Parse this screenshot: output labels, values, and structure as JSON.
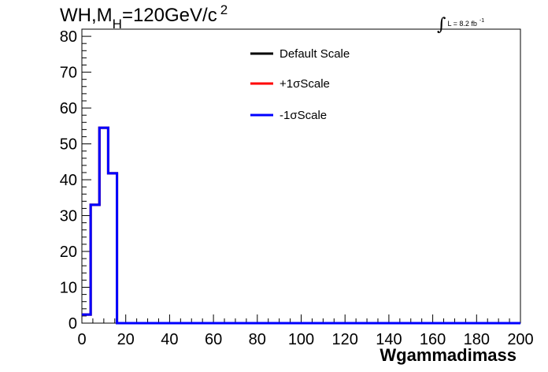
{
  "header": {
    "title_main": "WH,M",
    "title_sub": "H",
    "title_rest": "=120GeV/c",
    "title_sup": "2",
    "lumi_text": "L = 8.2 fb",
    "lumi_sup": "-1"
  },
  "colors": {
    "default": "#000000",
    "plus": "#ff0000",
    "minus": "#0000ff"
  },
  "chart_data": {
    "type": "line",
    "style": "step-histogram",
    "title": "WH,MH=120GeV/c2",
    "xlabel": "Wgammadimass",
    "ylabel": "",
    "xlim": [
      0,
      200
    ],
    "ylim": [
      0,
      82
    ],
    "xticks": [
      0,
      20,
      40,
      60,
      80,
      100,
      120,
      140,
      160,
      180,
      200
    ],
    "yticks": [
      0,
      10,
      20,
      30,
      40,
      50,
      60,
      70,
      80
    ],
    "grid": false,
    "legend_position": "top-center",
    "bin_edges": [
      0,
      4,
      8,
      12,
      16,
      20,
      24,
      28,
      32,
      36,
      40,
      44,
      48,
      52,
      56,
      60,
      64,
      68,
      72,
      76,
      80,
      84,
      88,
      92,
      96,
      100,
      104,
      108,
      112,
      116,
      120,
      124,
      128,
      132,
      136,
      140,
      144,
      148,
      152,
      156,
      160,
      164,
      168,
      172,
      176,
      180,
      184,
      188,
      192,
      196,
      200
    ],
    "series": [
      {
        "name": "Default Scale",
        "color": "#000000",
        "values": [
          2.4,
          33,
          54.5,
          41.8,
          0,
          0,
          0,
          0,
          0,
          0,
          0,
          0,
          0,
          0,
          0,
          0,
          0,
          0,
          0,
          0,
          0,
          0,
          0,
          0,
          0,
          0,
          0,
          0,
          0,
          0,
          0,
          0,
          0,
          0,
          0,
          0,
          0,
          0,
          0,
          0,
          0,
          0,
          0,
          0,
          0,
          0,
          0,
          0,
          0,
          0
        ]
      },
      {
        "name": "+1σScale",
        "color": "#ff0000",
        "values": [
          2.4,
          33,
          54.5,
          41.8,
          0,
          0,
          0,
          0,
          0,
          0,
          0,
          0,
          0,
          0,
          0,
          0,
          0,
          0,
          0,
          0,
          0,
          0,
          0,
          0,
          0,
          0,
          0,
          0,
          0,
          0,
          0,
          0,
          0,
          0,
          0,
          0,
          0,
          0,
          0,
          0,
          0,
          0,
          0,
          0,
          0,
          0,
          0,
          0,
          0,
          0
        ]
      },
      {
        "name": "-1σScale",
        "color": "#0000ff",
        "values": [
          2.4,
          33,
          54.5,
          41.8,
          0,
          0,
          0,
          0,
          0,
          0,
          0,
          0,
          0,
          0,
          0,
          0,
          0,
          0,
          0,
          0,
          0,
          0,
          0,
          0,
          0,
          0,
          0,
          0,
          0,
          0,
          0,
          0,
          0,
          0,
          0,
          0,
          0,
          0,
          0,
          0,
          0,
          0,
          0,
          0,
          0,
          0,
          0,
          0,
          0,
          0
        ]
      }
    ]
  }
}
